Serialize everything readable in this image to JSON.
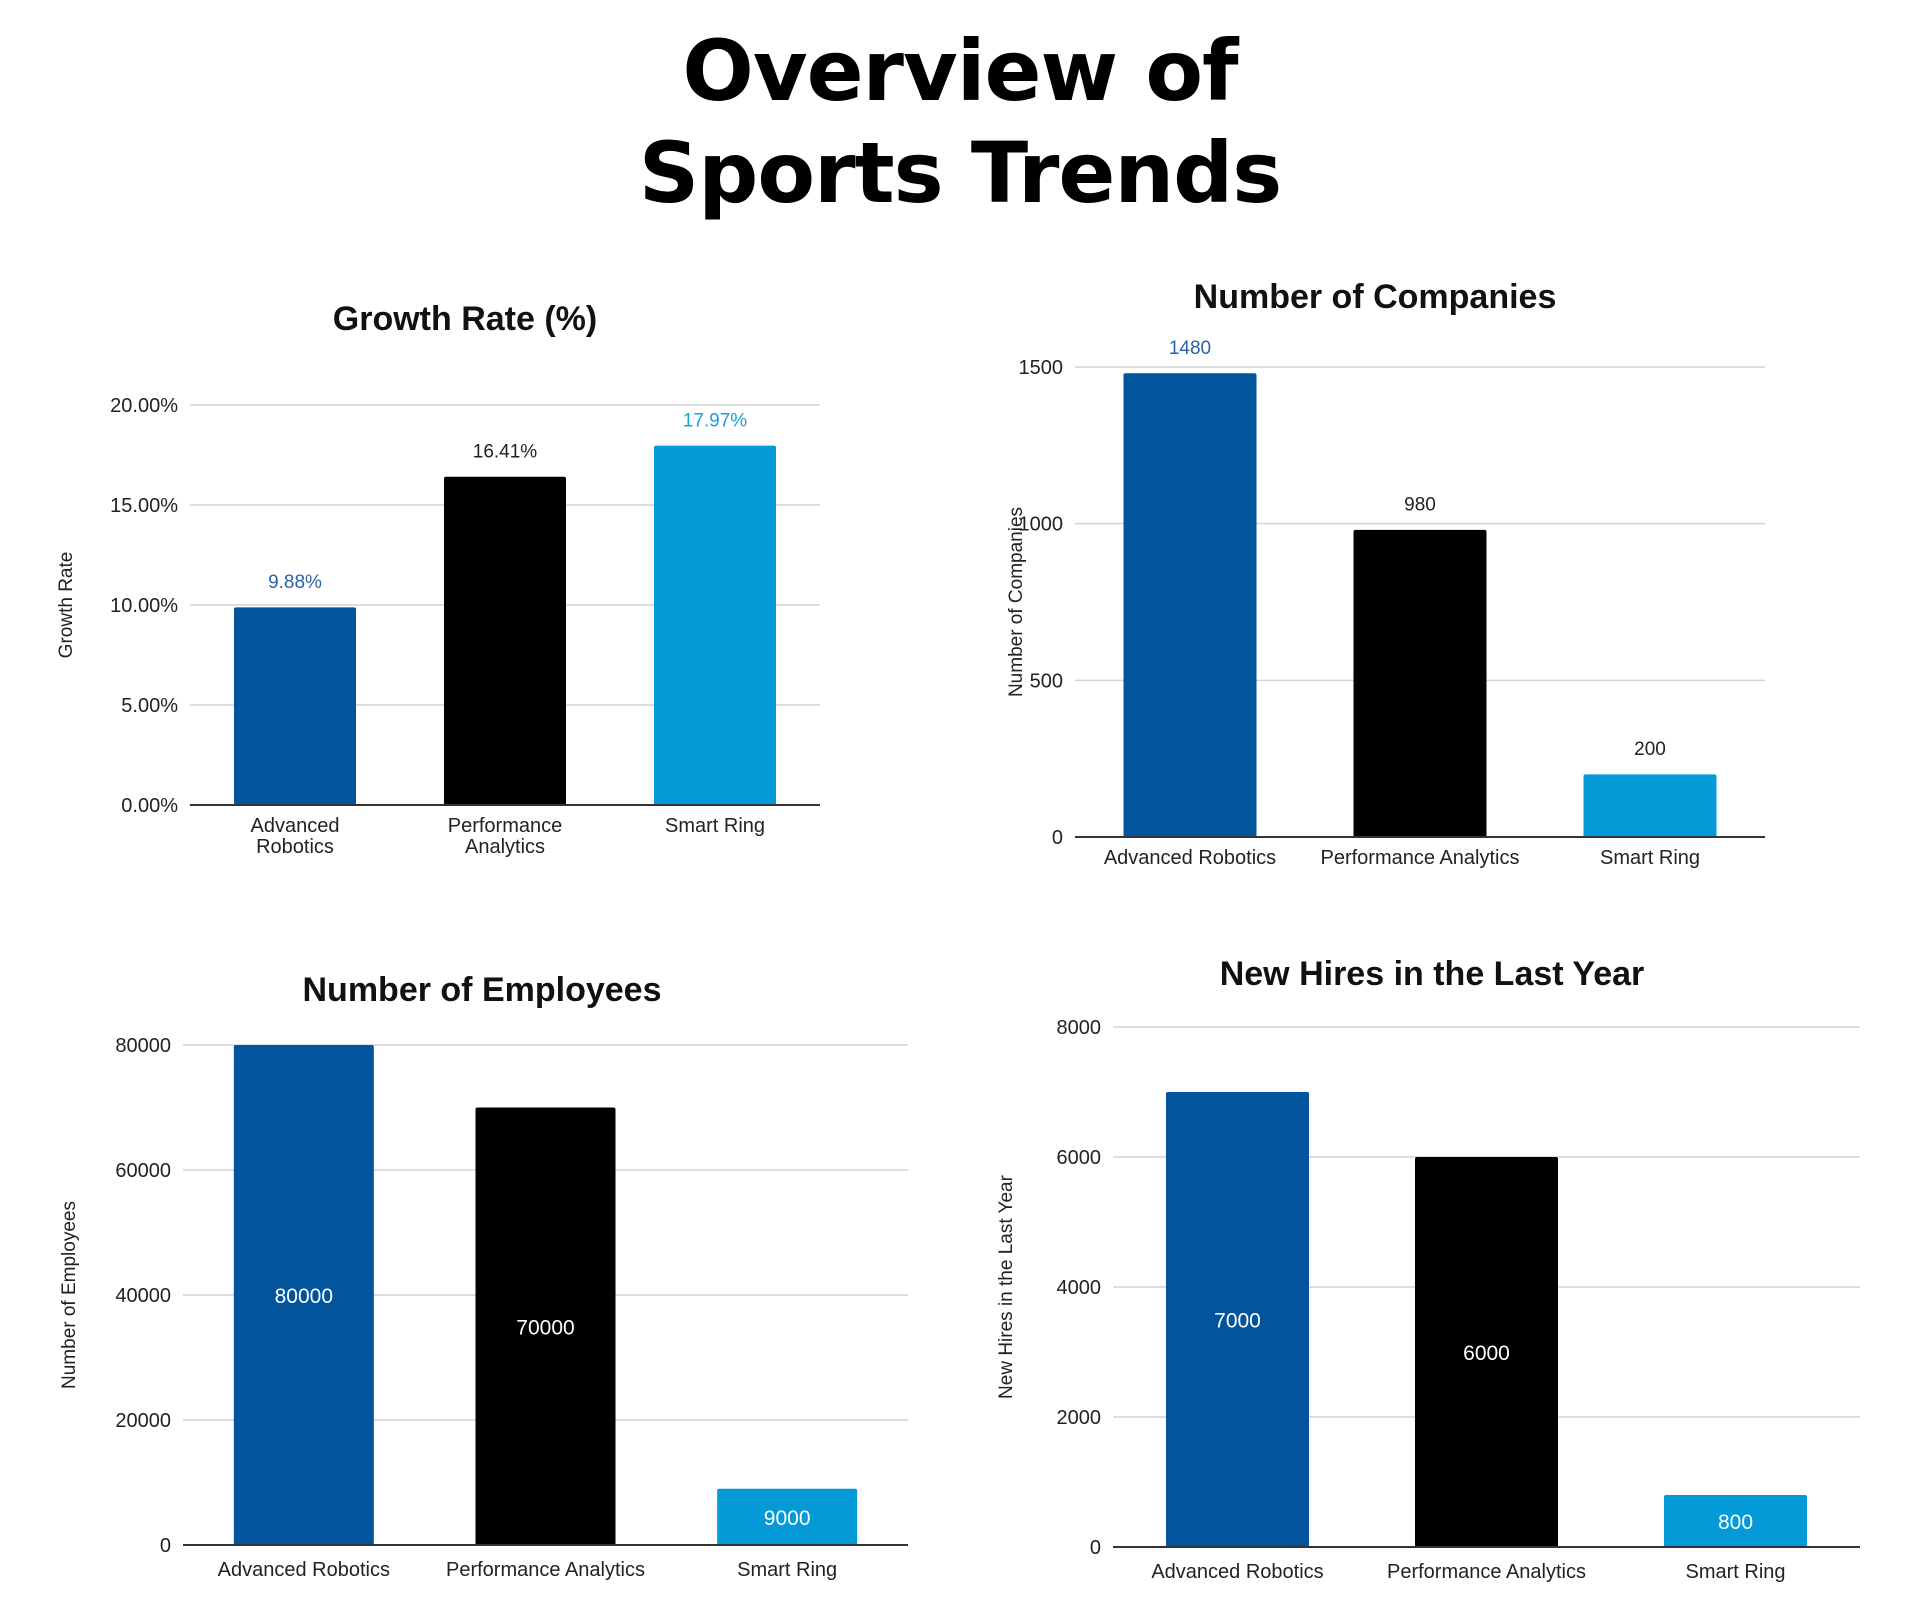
{
  "page": {
    "title_line1": "Overview of",
    "title_line2": "Sports Trends"
  },
  "colors": {
    "Advanced Robotics": "#02559c",
    "Performance Analytics": "#000000",
    "Smart Ring": "#049ad8",
    "grid": "#d4d4d4",
    "axis": "#333333"
  },
  "chart_data": [
    {
      "id": "growth-rate",
      "type": "bar",
      "title": "Growth Rate (%)",
      "xlabel": "",
      "ylabel": "Growth Rate",
      "categories": [
        "Advanced Robotics",
        "Performance Analytics",
        "Smart Ring"
      ],
      "category_lines": [
        [
          "Advanced",
          "Robotics"
        ],
        [
          "Performance",
          "Analytics"
        ],
        [
          "Smart Ring"
        ]
      ],
      "values": [
        9.88,
        16.41,
        17.97
      ],
      "value_labels": [
        "9.88%",
        "16.41%",
        "17.97%"
      ],
      "label_colors": [
        "#2a64a8",
        "#222222",
        "#1aa0dc"
      ],
      "label_position": "above",
      "ylim": [
        0,
        20
      ],
      "yticks": [
        0,
        5,
        10,
        15,
        20
      ],
      "ytick_labels": [
        "0.00%",
        "5.00%",
        "10.00%",
        "15.00%",
        "20.00%"
      ],
      "grid": true,
      "legend": "none"
    },
    {
      "id": "companies",
      "type": "bar",
      "title": "Number of Companies",
      "xlabel": "",
      "ylabel": "Number of Companies",
      "categories": [
        "Advanced Robotics",
        "Performance Analytics",
        "Smart Ring"
      ],
      "category_lines": [
        [
          "Advanced Robotics"
        ],
        [
          "Performance Analytics"
        ],
        [
          "Smart Ring"
        ]
      ],
      "values": [
        1480,
        980,
        200
      ],
      "value_labels": [
        "1480",
        "980",
        "200"
      ],
      "label_colors": [
        "#2a64a8",
        "#222222",
        "#222222"
      ],
      "label_position": "above",
      "ylim": [
        0,
        1500
      ],
      "yticks": [
        0,
        500,
        1000,
        1500
      ],
      "ytick_labels": [
        "0",
        "500",
        "1000",
        "1500"
      ],
      "grid": true,
      "legend": "none"
    },
    {
      "id": "employees",
      "type": "bar",
      "title": "Number of Employees",
      "xlabel": "",
      "ylabel": "Number of Employees",
      "categories": [
        "Advanced Robotics",
        "Performance Analytics",
        "Smart Ring"
      ],
      "category_lines": [
        [
          "Advanced Robotics"
        ],
        [
          "Performance Analytics"
        ],
        [
          "Smart Ring"
        ]
      ],
      "values": [
        80000,
        70000,
        9000
      ],
      "value_labels": [
        "80000",
        "70000",
        "9000"
      ],
      "label_colors": [
        "#ffffff",
        "#ffffff",
        "#ffffff"
      ],
      "label_position": "inside",
      "ylim": [
        0,
        80000
      ],
      "yticks": [
        0,
        20000,
        40000,
        60000,
        80000
      ],
      "ytick_labels": [
        "0",
        "20000",
        "40000",
        "60000",
        "80000"
      ],
      "grid": true,
      "legend": "none"
    },
    {
      "id": "new-hires",
      "type": "bar",
      "title": "New Hires in the Last Year",
      "xlabel": "",
      "ylabel": "New Hires in the Last Year",
      "categories": [
        "Advanced Robotics",
        "Performance Analytics",
        "Smart Ring"
      ],
      "category_lines": [
        [
          "Advanced Robotics"
        ],
        [
          "Performance Analytics"
        ],
        [
          "Smart Ring"
        ]
      ],
      "values": [
        7000,
        6000,
        800
      ],
      "value_labels": [
        "7000",
        "6000",
        "800"
      ],
      "label_colors": [
        "#ffffff",
        "#ffffff",
        "#ffffff"
      ],
      "label_position": "inside",
      "ylim": [
        0,
        8000
      ],
      "yticks": [
        0,
        2000,
        4000,
        6000,
        8000
      ],
      "ytick_labels": [
        "0",
        "2000",
        "4000",
        "6000",
        "8000"
      ],
      "grid": true,
      "legend": "none"
    }
  ]
}
